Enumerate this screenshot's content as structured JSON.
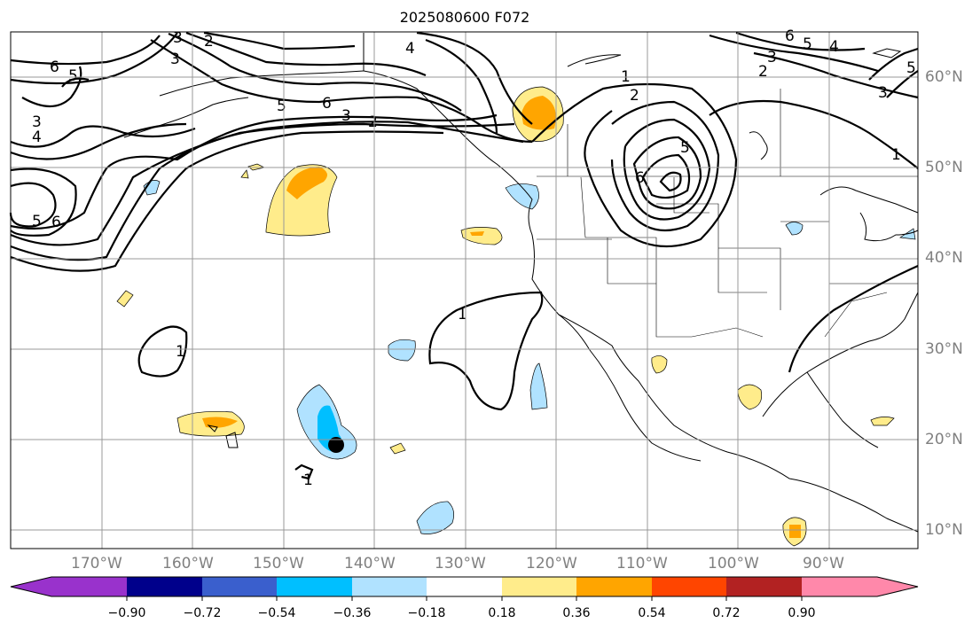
{
  "title": "2025080600 F072",
  "map": {
    "lat_labels": [
      "60°N",
      "50°N",
      "40°N",
      "30°N",
      "20°N",
      "10°N"
    ],
    "lon_labels": [
      "170°W",
      "160°W",
      "150°W",
      "140°W",
      "130°W",
      "120°W",
      "110°W",
      "100°W",
      "90°W"
    ],
    "contour_labels": [
      "6",
      "5",
      "4",
      "3",
      "2",
      "1"
    ],
    "grid_color": "#999999",
    "land_outline_color": "#000000",
    "marker": "storm-center-dot"
  },
  "colorbar": {
    "ticks": [
      "−0.90",
      "−0.72",
      "−0.54",
      "−0.36",
      "−0.18",
      "0.18",
      "0.36",
      "0.54",
      "0.72",
      "0.90"
    ],
    "colors": [
      "#9932cc",
      "#00008b",
      "#3a5fcd",
      "#00bfff",
      "#b0e2ff",
      "#ffffff",
      "#ffec8b",
      "#ffa500",
      "#ff4500",
      "#b22222",
      "#ff88aa"
    ]
  }
}
